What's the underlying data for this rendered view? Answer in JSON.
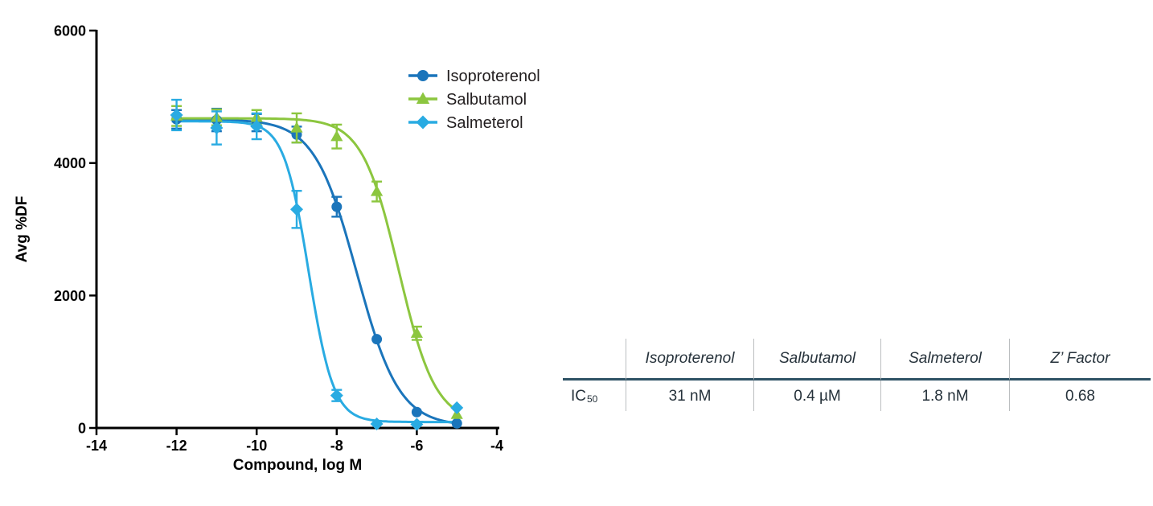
{
  "figure": {
    "background": "#ffffff",
    "text_color": "#231F20",
    "axis_color": "#000000"
  },
  "chart_data": {
    "type": "line",
    "title": "",
    "xlabel": "Compound, log M",
    "ylabel": "Avg %DF",
    "xlim": [
      -14,
      -4
    ],
    "ylim": [
      0,
      6000
    ],
    "xticks": [
      -14,
      -12,
      -10,
      -8,
      -6,
      -4
    ],
    "yticks": [
      0,
      2000,
      4000,
      6000
    ],
    "grid": false,
    "legend_position": "upper right inside",
    "x": [
      -12,
      -11,
      -10,
      -9,
      -8,
      -7,
      -6,
      -5
    ],
    "series": [
      {
        "name": "Isoproterenol",
        "color": "#1B75BB",
        "marker": "circle",
        "values": [
          4660,
          4650,
          4610,
          4430,
          3340,
          1340,
          240,
          70
        ],
        "errors": [
          140,
          170,
          130,
          120,
          150,
          0,
          0,
          0
        ],
        "fit": {
          "top": 4660,
          "bottom": 30,
          "logec50": -7.5,
          "hill": 0.82
        }
      },
      {
        "name": "Salbutamol",
        "color": "#8CC63F",
        "marker": "triangle",
        "values": [
          4710,
          4690,
          4690,
          4530,
          4400,
          3570,
          1430,
          205
        ],
        "errors": [
          150,
          120,
          110,
          220,
          180,
          150,
          100,
          0
        ],
        "fit": {
          "top": 4675,
          "bottom": 80,
          "logec50": -6.45,
          "hill": 0.95
        }
      },
      {
        "name": "Salmeterol",
        "color": "#29ABE2",
        "marker": "diamond",
        "values": [
          4725,
          4530,
          4555,
          3300,
          490,
          60,
          55,
          305
        ],
        "errors": [
          230,
          250,
          195,
          280,
          85,
          0,
          0,
          0
        ],
        "fit": {
          "top": 4630,
          "bottom": 90,
          "logec50": -8.7,
          "hill": 1.4
        }
      }
    ]
  },
  "table": {
    "columns": [
      "",
      "Isoproterenol",
      "Salbutamol",
      "Salmeterol",
      "Z’ Factor"
    ],
    "row": {
      "label": "IC",
      "label_sub": "50",
      "values": [
        "31 nM",
        "0.4 µM",
        "1.8 nM",
        "0.68"
      ]
    },
    "rule_color": "#2E5265",
    "divider_color": "#BBBEC0"
  }
}
